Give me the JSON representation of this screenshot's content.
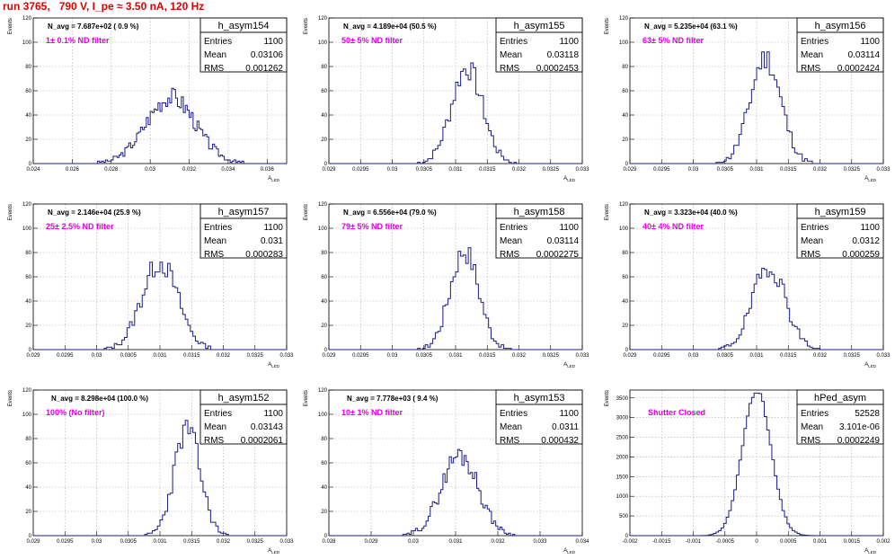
{
  "page_title": "run 3765,   790 V, I_pe ≈ 3.50 nA, 120 Hz",
  "axis": {
    "xlabel": "A",
    "xlabel_sub": "LED",
    "ylabel": "Events"
  },
  "stats_labels": {
    "entries": "Entries",
    "mean": "Mean",
    "rms": "RMS"
  },
  "chart_data": [
    {
      "type": "bar",
      "name": "h_asym154",
      "title": "h_asym154",
      "annotation": "N_avg = 7.687e+02 ( 0.9 %)",
      "filter": "1± 0.1% ND filter",
      "stats": {
        "entries": "1100",
        "mean": "0.03106",
        "rms": "0.001262"
      },
      "xlim": [
        0.024,
        0.037
      ],
      "ylim": [
        0,
        120
      ],
      "xticks": [
        "0.024",
        "0.026",
        "0.028",
        "0.03",
        "0.032",
        "0.034",
        "0.036"
      ],
      "yticks": [
        "0",
        "20",
        "40",
        "60",
        "80",
        "100",
        "120"
      ],
      "mean": 0.03106,
      "sigma": 0.001262,
      "peak": 55,
      "bin": 0.0001,
      "seed": 3
    },
    {
      "type": "bar",
      "name": "h_asym155",
      "title": "h_asym155",
      "annotation": "N_avg = 4.189e+04 (50.5 %)",
      "filter": "50± 5% ND filter",
      "stats": {
        "entries": "1100",
        "mean": "0.03118",
        "rms": "0.0002453"
      },
      "xlim": [
        0.029,
        0.033
      ],
      "ylim": [
        0,
        120
      ],
      "xticks": [
        "0.029",
        "0.0295",
        "0.03",
        "0.0305",
        "0.031",
        "0.0315",
        "0.032",
        "0.0325",
        "0.033"
      ],
      "yticks": [
        "0",
        "20",
        "40",
        "60",
        "80",
        "100",
        "120"
      ],
      "mean": 0.03118,
      "sigma": 0.0002453,
      "peak": 79,
      "bin": 4e-05,
      "seed": 7
    },
    {
      "type": "bar",
      "name": "h_asym156",
      "title": "h_asym156",
      "annotation": "N_avg = 5.235e+04 (63.1 %)",
      "filter": "63± 5% ND filter",
      "stats": {
        "entries": "1100",
        "mean": "0.03114",
        "rms": "0.0002424"
      },
      "xlim": [
        0.029,
        0.033
      ],
      "ylim": [
        0,
        120
      ],
      "xticks": [
        "0.029",
        "0.0295",
        "0.03",
        "0.0305",
        "0.031",
        "0.0315",
        "0.032",
        "0.0325",
        "0.033"
      ],
      "yticks": [
        "0",
        "20",
        "40",
        "60",
        "80",
        "100",
        "120"
      ],
      "mean": 0.03114,
      "sigma": 0.0002424,
      "peak": 87,
      "bin": 4e-05,
      "seed": 11
    },
    {
      "type": "bar",
      "name": "h_asym157",
      "title": "h_asym157",
      "annotation": "N_avg = 2.146e+04 (25.9 %)",
      "filter": "25± 2.5% ND filter",
      "stats": {
        "entries": "1100",
        "mean": "0.031",
        "rms": "0.000283"
      },
      "xlim": [
        0.029,
        0.033
      ],
      "ylim": [
        0,
        120
      ],
      "xticks": [
        "0.029",
        "0.0295",
        "0.03",
        "0.0305",
        "0.031",
        "0.0315",
        "0.032",
        "0.0325",
        "0.033"
      ],
      "yticks": [
        "0",
        "20",
        "40",
        "60",
        "80",
        "100",
        "120"
      ],
      "mean": 0.031,
      "sigma": 0.000283,
      "peak": 72,
      "bin": 4e-05,
      "seed": 13
    },
    {
      "type": "bar",
      "name": "h_asym158",
      "title": "h_asym158",
      "annotation": "N_avg = 6.556e+04 (79.0 %)",
      "filter": "79± 5% ND filter",
      "stats": {
        "entries": "1100",
        "mean": "0.03114",
        "rms": "0.0002275"
      },
      "xlim": [
        0.029,
        0.033
      ],
      "ylim": [
        0,
        120
      ],
      "xticks": [
        "0.029",
        "0.0295",
        "0.03",
        "0.0305",
        "0.031",
        "0.0315",
        "0.032",
        "0.0325",
        "0.033"
      ],
      "yticks": [
        "0",
        "20",
        "40",
        "60",
        "80",
        "100",
        "120"
      ],
      "mean": 0.03114,
      "sigma": 0.0002275,
      "peak": 82,
      "bin": 4e-05,
      "seed": 17
    },
    {
      "type": "bar",
      "name": "h_asym159",
      "title": "h_asym159",
      "annotation": "N_avg = 3.323e+04 (40.0 %)",
      "filter": "40± 4% ND filter",
      "stats": {
        "entries": "1100",
        "mean": "0.0312",
        "rms": "0.000259"
      },
      "xlim": [
        0.029,
        0.033
      ],
      "ylim": [
        0,
        120
      ],
      "xticks": [
        "0.029",
        "0.0295",
        "0.03",
        "0.0305",
        "0.031",
        "0.0315",
        "0.032",
        "0.0325",
        "0.033"
      ],
      "yticks": [
        "0",
        "20",
        "40",
        "60",
        "80",
        "100",
        "120"
      ],
      "mean": 0.0312,
      "sigma": 0.000259,
      "peak": 69,
      "bin": 4e-05,
      "seed": 19
    },
    {
      "type": "bar",
      "name": "h_asym152",
      "title": "h_asym152",
      "annotation": "N_avg = 8.298e+04 (100.0 %)",
      "filter": "100% (No filter)",
      "stats": {
        "entries": "1100",
        "mean": "0.03143",
        "rms": "0.0002061"
      },
      "xlim": [
        0.029,
        0.033
      ],
      "ylim": [
        0,
        120
      ],
      "xticks": [
        "0.029",
        "0.0295",
        "0.03",
        "0.0305",
        "0.031",
        "0.0315",
        "0.032",
        "0.0325",
        "0.033"
      ],
      "yticks": [
        "0",
        "20",
        "40",
        "60",
        "80",
        "100",
        "120"
      ],
      "mean": 0.03143,
      "sigma": 0.0002061,
      "peak": 88,
      "bin": 4e-05,
      "seed": 23
    },
    {
      "type": "bar",
      "name": "h_asym153",
      "title": "h_asym153",
      "annotation": "N_avg = 7.778e+03 ( 9.4 %)",
      "filter": "10± 1% ND filter",
      "stats": {
        "entries": "1100",
        "mean": "0.0311",
        "rms": "0.000432"
      },
      "xlim": [
        0.028,
        0.034
      ],
      "ylim": [
        0,
        120
      ],
      "xticks": [
        "0.028",
        "0.029",
        "0.03",
        "0.031",
        "0.032",
        "0.033",
        "0.034"
      ],
      "yticks": [
        "0",
        "20",
        "40",
        "60",
        "80",
        "100",
        "120"
      ],
      "mean": 0.0311,
      "sigma": 0.000432,
      "peak": 67,
      "bin": 5e-05,
      "seed": 29
    },
    {
      "type": "bar",
      "name": "hPed_asym",
      "title": "hPed_asym",
      "annotation": "",
      "filter": "Shutter Closed",
      "stats": {
        "entries": "52528",
        "mean": "3.101e-06",
        "rms": "0.0002249"
      },
      "xlim": [
        -0.002,
        0.002
      ],
      "ylim": [
        0,
        3700
      ],
      "xticks": [
        "-0.002",
        "-0.0015",
        "-0.001",
        "-0.0005",
        "0",
        "0.0005",
        "0.001",
        "0.0015",
        "0.002"
      ],
      "yticks": [
        "0",
        "500",
        "1000",
        "1500",
        "2000",
        "2500",
        "3000",
        "3500"
      ],
      "mean": 0.0,
      "sigma": 0.0002249,
      "peak": 3700,
      "bin": 4e-05,
      "seed": 31
    }
  ]
}
